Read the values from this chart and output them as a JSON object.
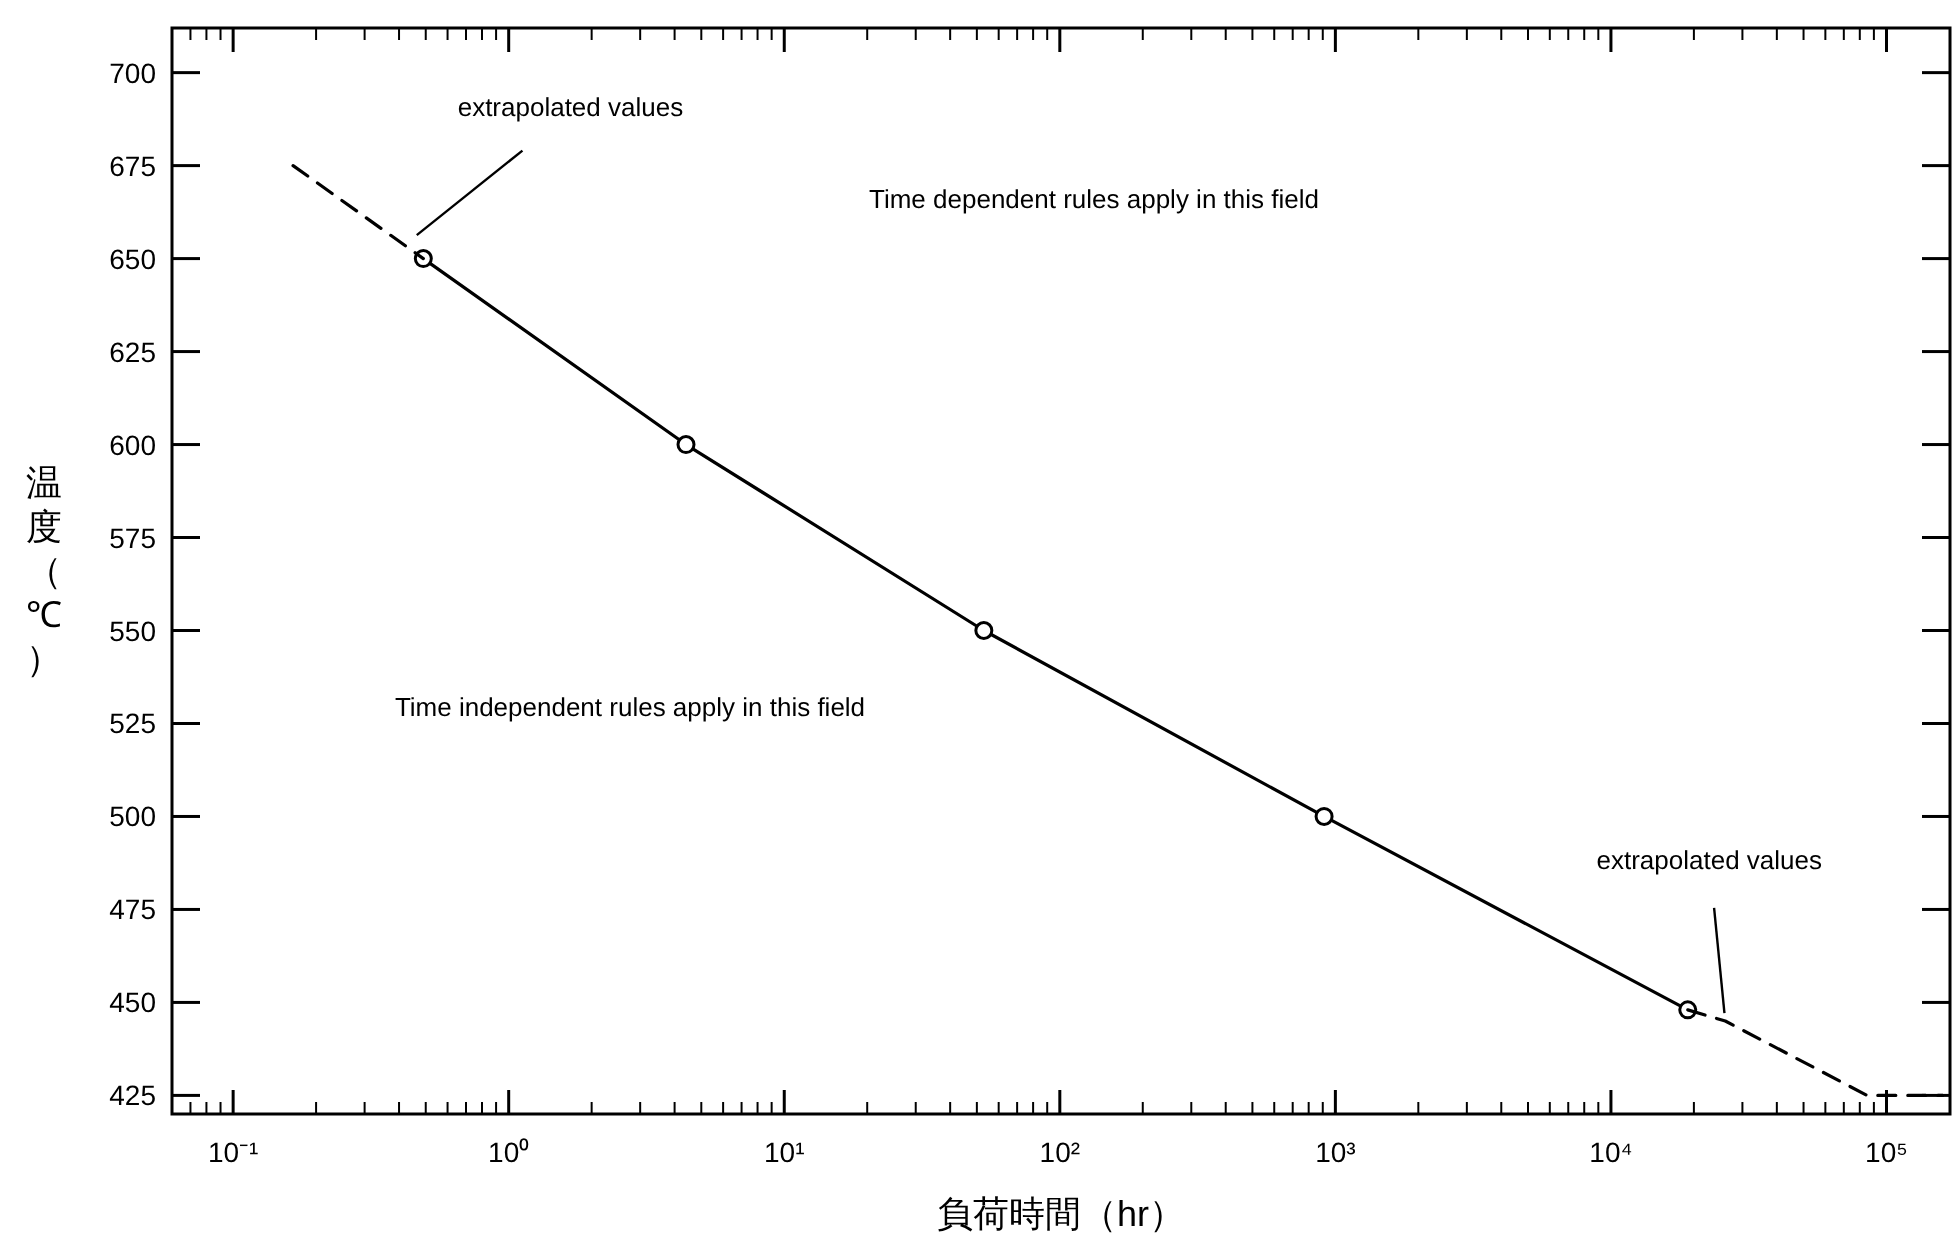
{
  "chart_data": {
    "type": "line",
    "xlabel": "負荷時間（hr）",
    "ylabel": "温度（℃）",
    "log": "x",
    "grid": false,
    "xlim": [
      0.06,
      170000
    ],
    "ylim": [
      420,
      712
    ],
    "xticks": [
      {
        "value": 0.1,
        "label": "10⁻¹"
      },
      {
        "value": 1,
        "label": "10⁰"
      },
      {
        "value": 10,
        "label": "10¹"
      },
      {
        "value": 100,
        "label": "10²"
      },
      {
        "value": 1000,
        "label": "10³"
      },
      {
        "value": 10000,
        "label": "10⁴"
      },
      {
        "value": 100000,
        "label": "10⁵"
      }
    ],
    "yticks": [
      425,
      450,
      475,
      500,
      525,
      550,
      575,
      600,
      625,
      650,
      675,
      700
    ],
    "series": [
      {
        "type": "line",
        "color": "#000000",
        "x": [
          0.49,
          4.4,
          53,
          910,
          19000
        ],
        "values": [
          650,
          600,
          550,
          500,
          448
        ],
        "marker": "circle",
        "line_style": "solid"
      },
      {
        "type": "line",
        "color": "#000000",
        "x": [
          0.165,
          0.49
        ],
        "values": [
          675,
          650
        ],
        "marker": "none",
        "line_style": "dashed"
      },
      {
        "type": "line",
        "color": "#000000",
        "x": [
          19000,
          26000,
          85000,
          160000
        ],
        "values": [
          448,
          445,
          425,
          425
        ],
        "marker": "none",
        "line_style": "dashed"
      }
    ],
    "annotations": [
      "Time dependent rules apply in this field",
      "Time independent rules apply in this field",
      {
        "text": "extrapolated values",
        "x": 0.44,
        "y": 655
      },
      {
        "text": "extrapolated values",
        "x": 26000,
        "y": 445
      }
    ]
  }
}
